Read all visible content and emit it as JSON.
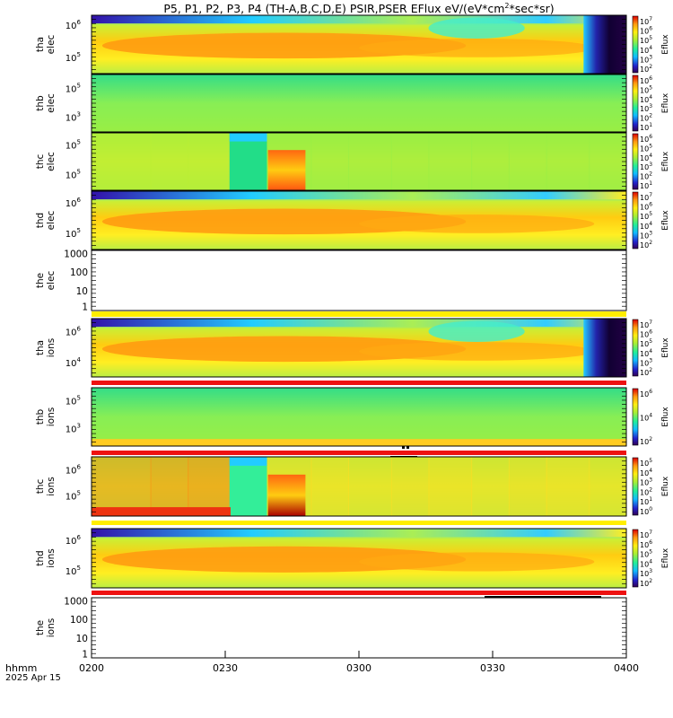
{
  "title": "P5, P1, P2, P3, P4 (TH-A,B,C,D,E) PSIR,PSER EFlux eV/(eV*cm",
  "title_sup": "2",
  "title_end": "*sec*sr)",
  "footer": {
    "label1": "hhmm",
    "label2": "2025 Apr 15"
  },
  "colorbar_label": "Eflux",
  "x_ticks": [
    "0200",
    "0230",
    "0300",
    "0330",
    "0400"
  ],
  "colors": {
    "red_bar": "#ee1111",
    "yellow_bar": "#ffee00"
  },
  "chart_data": [
    {
      "type": "heatmap",
      "name": "tha elec",
      "ylabel": [
        "tha",
        "elec"
      ],
      "ytick_labels": [
        {
          "base": "10",
          "exp": "6"
        },
        {
          "base": "10",
          "exp": "5"
        }
      ],
      "colorbar_ticks": [
        {
          "base": "10",
          "exp": "7"
        },
        {
          "base": "10",
          "exp": "6"
        },
        {
          "base": "10",
          "exp": "5"
        },
        {
          "base": "10",
          "exp": "4"
        },
        {
          "base": "10",
          "exp": "3"
        },
        {
          "base": "10",
          "exp": "2"
        }
      ]
    },
    {
      "type": "heatmap",
      "name": "thb elec",
      "ylabel": [
        "thb",
        "elec"
      ],
      "ytick_labels": [
        {
          "base": "10",
          "exp": "5"
        },
        {
          "base": "10",
          "exp": "3"
        }
      ],
      "colorbar_ticks": [
        {
          "base": "10",
          "exp": "6"
        },
        {
          "base": "10",
          "exp": "5"
        },
        {
          "base": "10",
          "exp": "4"
        },
        {
          "base": "10",
          "exp": "3"
        },
        {
          "base": "10",
          "exp": "2"
        },
        {
          "base": "10",
          "exp": "1"
        }
      ]
    },
    {
      "type": "heatmap",
      "name": "thc elec",
      "ylabel": [
        "thc",
        "elec"
      ],
      "ytick_labels": [
        {
          "base": "10",
          "exp": "5"
        },
        {
          "base": "10",
          "exp": "5"
        }
      ],
      "colorbar_ticks": [
        {
          "base": "10",
          "exp": "6"
        },
        {
          "base": "10",
          "exp": "5"
        },
        {
          "base": "10",
          "exp": "4"
        },
        {
          "base": "10",
          "exp": "3"
        },
        {
          "base": "10",
          "exp": "2"
        },
        {
          "base": "10",
          "exp": "1"
        }
      ]
    },
    {
      "type": "heatmap",
      "name": "thd elec",
      "ylabel": [
        "thd",
        "elec"
      ],
      "ytick_labels": [
        {
          "base": "10",
          "exp": "6"
        },
        {
          "base": "10",
          "exp": "5"
        }
      ],
      "colorbar_ticks": [
        {
          "base": "10",
          "exp": "7"
        },
        {
          "base": "10",
          "exp": "6"
        },
        {
          "base": "10",
          "exp": "5"
        },
        {
          "base": "10",
          "exp": "4"
        },
        {
          "base": "10",
          "exp": "3"
        },
        {
          "base": "10",
          "exp": "2"
        }
      ]
    },
    {
      "type": "empty",
      "name": "the elec",
      "ylabel": [
        "the",
        "elec"
      ],
      "ytick_labels": [
        "1000",
        "100",
        "10",
        "1"
      ]
    },
    {
      "type": "heatmap",
      "name": "tha ions",
      "ylabel": [
        "tha",
        "ions"
      ],
      "ytick_labels": [
        {
          "base": "10",
          "exp": "6"
        },
        {
          "base": "10",
          "exp": "4"
        }
      ],
      "colorbar_ticks": [
        {
          "base": "10",
          "exp": "7"
        },
        {
          "base": "10",
          "exp": "6"
        },
        {
          "base": "10",
          "exp": "5"
        },
        {
          "base": "10",
          "exp": "4"
        },
        {
          "base": "10",
          "exp": "3"
        },
        {
          "base": "10",
          "exp": "2"
        }
      ]
    },
    {
      "type": "heatmap",
      "name": "thb ions",
      "ylabel": [
        "thb",
        "ions"
      ],
      "ytick_labels": [
        {
          "base": "10",
          "exp": "5"
        },
        {
          "base": "10",
          "exp": "3"
        }
      ],
      "colorbar_ticks": [
        {
          "base": "10",
          "exp": "6"
        },
        {
          "base": "10",
          "exp": "4"
        },
        {
          "base": "10",
          "exp": "2"
        }
      ]
    },
    {
      "type": "heatmap",
      "name": "thc ions",
      "ylabel": [
        "thc",
        "ions"
      ],
      "ytick_labels": [
        {
          "base": "10",
          "exp": "6"
        },
        {
          "base": "10",
          "exp": "5"
        }
      ],
      "colorbar_ticks": [
        {
          "base": "10",
          "exp": "5"
        },
        {
          "base": "10",
          "exp": "4"
        },
        {
          "base": "10",
          "exp": "3"
        },
        {
          "base": "10",
          "exp": "2"
        },
        {
          "base": "10",
          "exp": "1"
        },
        {
          "base": "10",
          "exp": "0"
        }
      ]
    },
    {
      "type": "heatmap",
      "name": "thd ions",
      "ylabel": [
        "thd",
        "ions"
      ],
      "ytick_labels": [
        {
          "base": "10",
          "exp": "6"
        },
        {
          "base": "10",
          "exp": "5"
        }
      ],
      "colorbar_ticks": [
        {
          "base": "10",
          "exp": "7"
        },
        {
          "base": "10",
          "exp": "6"
        },
        {
          "base": "10",
          "exp": "5"
        },
        {
          "base": "10",
          "exp": "4"
        },
        {
          "base": "10",
          "exp": "3"
        },
        {
          "base": "10",
          "exp": "2"
        }
      ]
    },
    {
      "type": "empty",
      "name": "the ions",
      "ylabel": [
        "the",
        "ions"
      ],
      "ytick_labels": [
        "1000",
        "100",
        "10",
        "1"
      ]
    }
  ]
}
